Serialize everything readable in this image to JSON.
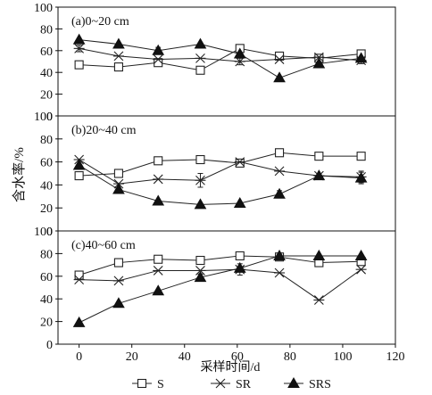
{
  "chart_data": {
    "type": "line",
    "x_label": "采样时间/d",
    "y_label": "含水率/%",
    "xlim": [
      -8,
      120
    ],
    "x_ticks": [
      0,
      20,
      40,
      60,
      80,
      100,
      120
    ],
    "ylim": [
      0,
      100
    ],
    "y_ticks": [
      0,
      20,
      40,
      60,
      80,
      100
    ],
    "x": [
      0,
      15,
      30,
      46,
      61,
      76,
      91,
      107
    ],
    "legend_position": "bottom",
    "legend": [
      {
        "name": "S",
        "marker": "square"
      },
      {
        "name": "SR",
        "marker": "star"
      },
      {
        "name": "SRS",
        "marker": "triangle"
      }
    ],
    "panels": [
      {
        "title": "(a)0~20 cm",
        "series": [
          {
            "name": "S",
            "values": [
              47,
              45,
              49,
              42,
              62,
              55,
              53,
              57
            ],
            "errors": [
              0,
              0,
              2,
              0,
              0,
              3,
              0,
              0
            ]
          },
          {
            "name": "SR",
            "values": [
              62,
              55,
              52,
              53,
              50,
              52,
              54,
              51
            ],
            "errors": [
              3,
              0,
              0,
              0,
              3,
              0,
              0,
              3
            ]
          },
          {
            "name": "SRS",
            "values": [
              70,
              66,
              60,
              66,
              57,
              35,
              48,
              53
            ],
            "errors": [
              0,
              0,
              3,
              0,
              0,
              0,
              0,
              0
            ]
          }
        ]
      },
      {
        "title": "(b)20~40 cm",
        "series": [
          {
            "name": "S",
            "values": [
              48,
              50,
              61,
              62,
              59,
              68,
              65,
              65
            ],
            "errors": [
              0,
              0,
              3,
              0,
              0,
              0,
              0,
              0
            ]
          },
          {
            "name": "SR",
            "values": [
              62,
              41,
              45,
              44,
              60,
              52,
              48,
              47
            ],
            "errors": [
              0,
              0,
              0,
              6,
              0,
              0,
              0,
              5
            ]
          },
          {
            "name": "SRS",
            "values": [
              57,
              36,
              26,
              23,
              24,
              32,
              48,
              46
            ],
            "errors": [
              0,
              0,
              0,
              0,
              0,
              3,
              0,
              5
            ]
          }
        ]
      },
      {
        "title": "(c)40~60 cm",
        "series": [
          {
            "name": "S",
            "values": [
              61,
              72,
              75,
              74,
              78,
              77,
              72,
              73
            ],
            "errors": [
              0,
              0,
              0,
              0,
              0,
              0,
              0,
              0
            ]
          },
          {
            "name": "SR",
            "values": [
              57,
              56,
              65,
              65,
              66,
              63,
              39,
              66
            ],
            "errors": [
              0,
              0,
              0,
              0,
              5,
              0,
              0,
              0
            ]
          },
          {
            "name": "SRS",
            "values": [
              19,
              36,
              47,
              59,
              67,
              78,
              78,
              78
            ],
            "errors": [
              0,
              0,
              0,
              3,
              0,
              0,
              0,
              0
            ]
          }
        ]
      }
    ]
  }
}
